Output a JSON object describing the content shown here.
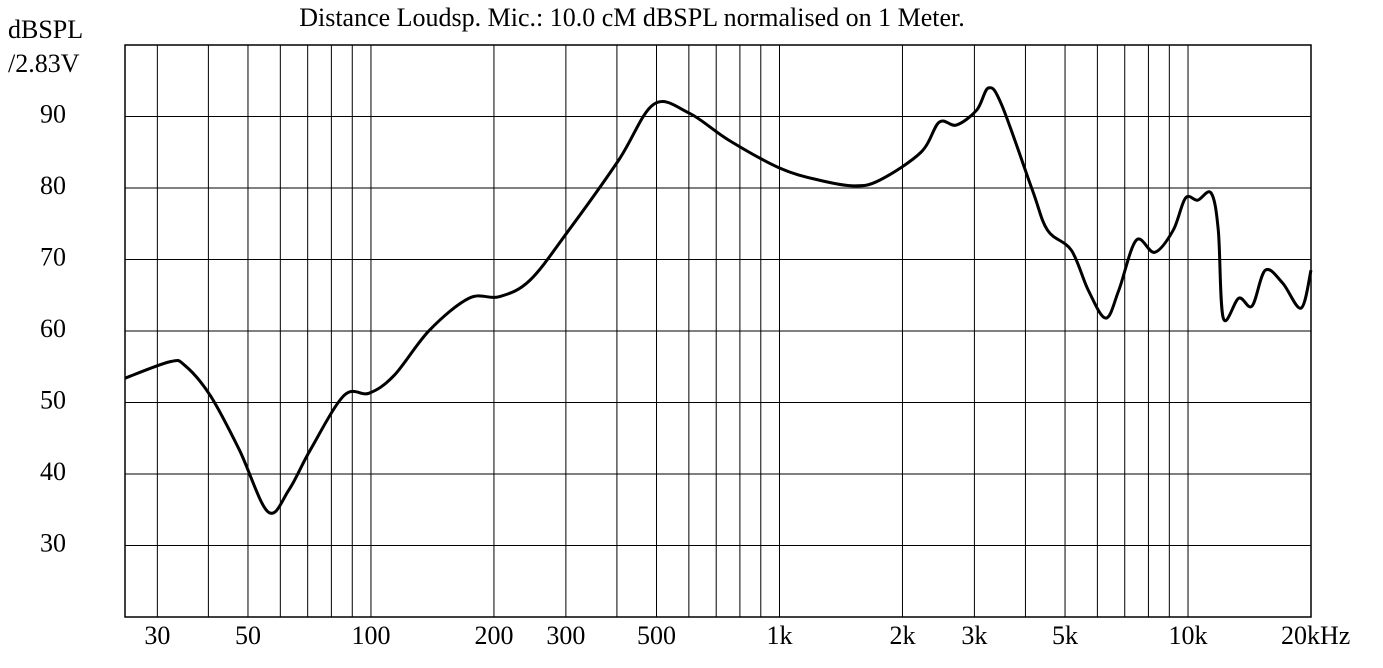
{
  "chart_data": {
    "type": "line",
    "title": "Distance Loudsp. Mic.: 10.0 cM dBSPL normalised on 1 Meter.",
    "ylabel": [
      "dBSPL",
      "/2.83V"
    ],
    "xscale": "log",
    "xlim": [
      25,
      20000
    ],
    "ylim": [
      20,
      100
    ],
    "xticks": [
      30,
      50,
      100,
      200,
      300,
      500,
      {
        "value": 1000,
        "label": "1k"
      },
      {
        "value": 2000,
        "label": "2k"
      },
      {
        "value": 3000,
        "label": "3k"
      },
      {
        "value": 5000,
        "label": "5k"
      },
      {
        "value": 10000,
        "label": "10k"
      },
      {
        "value": 20000,
        "label": "20kHz"
      }
    ],
    "xminor": [
      40,
      60,
      70,
      80,
      90,
      400,
      600,
      700,
      800,
      900,
      4000,
      6000,
      7000,
      8000,
      9000
    ],
    "yticks": [
      30,
      40,
      50,
      60,
      70,
      80,
      90
    ],
    "grid": true,
    "series": [
      {
        "name": "dBSPL",
        "color": "#000000",
        "x": [
          25,
          32.2,
          35,
          40.4,
          47.6,
          56,
          63,
          71.1,
          86,
          99,
          114,
          139,
          174,
          206,
          245,
          305,
          404,
          492,
          600,
          751,
          1000,
          1250,
          1525,
          1760,
          2220,
          2460,
          2710,
          3040,
          3250,
          3500,
          4160,
          4530,
          5180,
          5700,
          6290,
          6770,
          7470,
          8290,
          9200,
          9860,
          10560,
          11390,
          11860,
          12200,
          13320,
          14350,
          15460,
          17050,
          18910,
          20000
        ],
        "values": [
          53.4,
          55.7,
          55.2,
          51.0,
          43.4,
          34.7,
          37.8,
          43.4,
          51.0,
          51.3,
          53.8,
          60.1,
          64.6,
          64.8,
          67.1,
          74.1,
          83.9,
          91.7,
          90.5,
          86.7,
          82.8,
          81.1,
          80.3,
          81.1,
          85.0,
          89.2,
          88.8,
          90.9,
          94.0,
          91.6,
          79.7,
          74.1,
          71.3,
          65.7,
          61.8,
          65.7,
          72.7,
          71.0,
          74.1,
          78.6,
          78.3,
          79.3,
          74.1,
          61.8,
          64.6,
          63.5,
          68.5,
          66.7,
          63.2,
          68.5
        ]
      }
    ]
  }
}
